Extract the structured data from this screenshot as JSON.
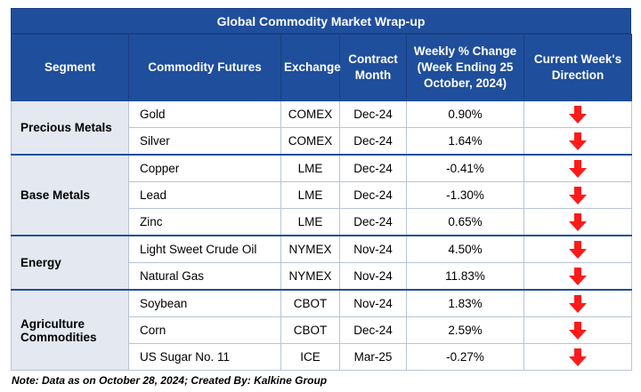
{
  "title": "Global Commodity Market Wrap-up",
  "headers": [
    "Segment",
    "Commodity Futures",
    "Exchange",
    "Contract Month",
    "Weekly % Change (Week Ending  25 October, 2024)",
    "Current Week's Direction"
  ],
  "segments": [
    {
      "name": "Precious Metals",
      "rows": [
        {
          "commodity": "Gold",
          "exchange": "COMEX",
          "month": "Dec-24",
          "change": "0.90%",
          "direction": "down"
        },
        {
          "commodity": "Silver",
          "exchange": "COMEX",
          "month": "Dec-24",
          "change": "1.64%",
          "direction": "down"
        }
      ]
    },
    {
      "name": "Base Metals",
      "rows": [
        {
          "commodity": "Copper",
          "exchange": "LME",
          "month": "Dec-24",
          "change": "-0.41%",
          "direction": "down"
        },
        {
          "commodity": "Lead",
          "exchange": "LME",
          "month": "Dec-24",
          "change": "-1.30%",
          "direction": "down"
        },
        {
          "commodity": "Zinc",
          "exchange": "LME",
          "month": "Dec-24",
          "change": "0.65%",
          "direction": "down"
        }
      ]
    },
    {
      "name": "Energy",
      "rows": [
        {
          "commodity": "Light Sweet Crude Oil",
          "exchange": "NYMEX",
          "month": "Nov-24",
          "change": "4.50%",
          "direction": "down"
        },
        {
          "commodity": "Natural Gas",
          "exchange": "NYMEX",
          "month": "Nov-24",
          "change": "11.83%",
          "direction": "down"
        }
      ]
    },
    {
      "name": "Agriculture Commodities",
      "rows": [
        {
          "commodity": "Soybean",
          "exchange": "CBOT",
          "month": "Nov-24",
          "change": "1.83%",
          "direction": "down"
        },
        {
          "commodity": "Corn",
          "exchange": "CBOT",
          "month": "Dec-24",
          "change": "2.59%",
          "direction": "down"
        },
        {
          "commodity": "US Sugar No. 11",
          "exchange": "ICE",
          "month": "Mar-25",
          "change": "-0.27%",
          "direction": "down"
        }
      ]
    }
  ],
  "note": "Note: Data as on October 28, 2024; Created By: Kalkine Group",
  "colors": {
    "header_bg": "#1f4e9c",
    "segment_bg": "#e3e8f1",
    "arrow": "#ff1a1a"
  },
  "icons": {
    "direction": "red-down-arrow-icon"
  }
}
